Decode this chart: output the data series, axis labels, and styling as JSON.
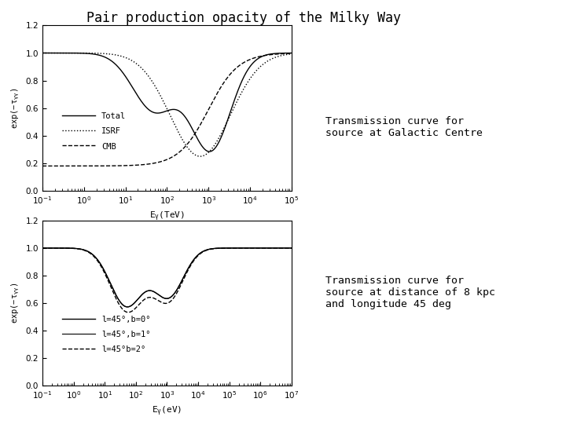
{
  "title": "Pair production opacity of the Milky Way",
  "title_fontsize": 12,
  "background_color": "#ffffff",
  "text_color": "#000000",
  "plot1": {
    "xlabel": "E_γ(TeV)",
    "ylabel": "exp(-τ_γγ)",
    "xlim": [
      0.1,
      100000.0
    ],
    "ylim": [
      0.0,
      1.2
    ],
    "yticks": [
      0.0,
      0.2,
      0.4,
      0.6,
      0.8,
      1.0,
      1.2
    ],
    "legend_labels": [
      "Total",
      "ISRF",
      "CMB"
    ],
    "annotation": "Transmission curve for\nsource at Galactic Centre"
  },
  "plot2": {
    "xlabel": "E_γ( eV)",
    "ylabel": "exp(-τ_γγ)",
    "xlim": [
      0.1,
      10000000.0
    ],
    "ylim": [
      0.0,
      1.2
    ],
    "yticks": [
      0.0,
      0.2,
      0.4,
      0.6,
      0.8,
      1.0,
      1.2
    ],
    "legend_labels": [
      "l=45°,b=0°",
      "l=45°,b=1°",
      "l=45°b=2°"
    ],
    "annotation": "Transmission curve for\nsource at distance of 8 kpc\nand longitude 45 deg"
  }
}
